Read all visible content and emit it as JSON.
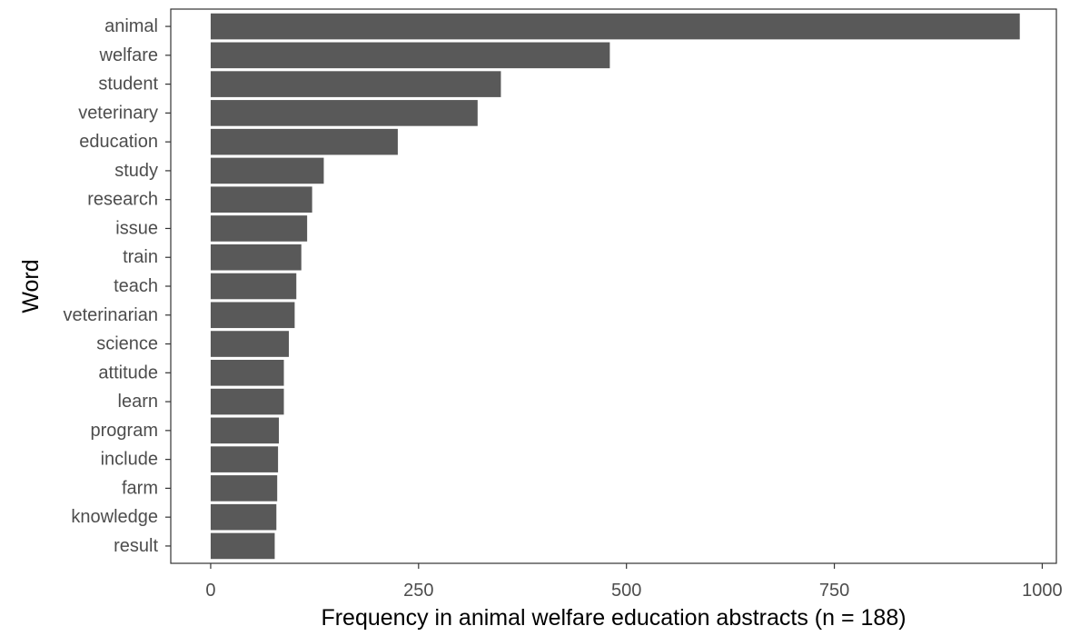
{
  "chart_data": {
    "type": "bar",
    "orientation": "horizontal",
    "xlabel": "Frequency in animal welfare education abstracts (n = 188)",
    "ylabel": "Word",
    "xlim": [
      -48,
      1017
    ],
    "x_ticks": [
      0,
      250,
      500,
      750,
      1000
    ],
    "grid": false,
    "legend": "none",
    "bar_color": "#595959",
    "categories": [
      "animal",
      "welfare",
      "student",
      "veterinary",
      "education",
      "study",
      "research",
      "issue",
      "train",
      "teach",
      "veterinarian",
      "science",
      "attitude",
      "learn",
      "program",
      "include",
      "farm",
      "knowledge",
      "result"
    ],
    "values": [
      973,
      480,
      349,
      321,
      225,
      136,
      122,
      116,
      109,
      103,
      101,
      94,
      88,
      88,
      82,
      81,
      80,
      79,
      77
    ]
  }
}
